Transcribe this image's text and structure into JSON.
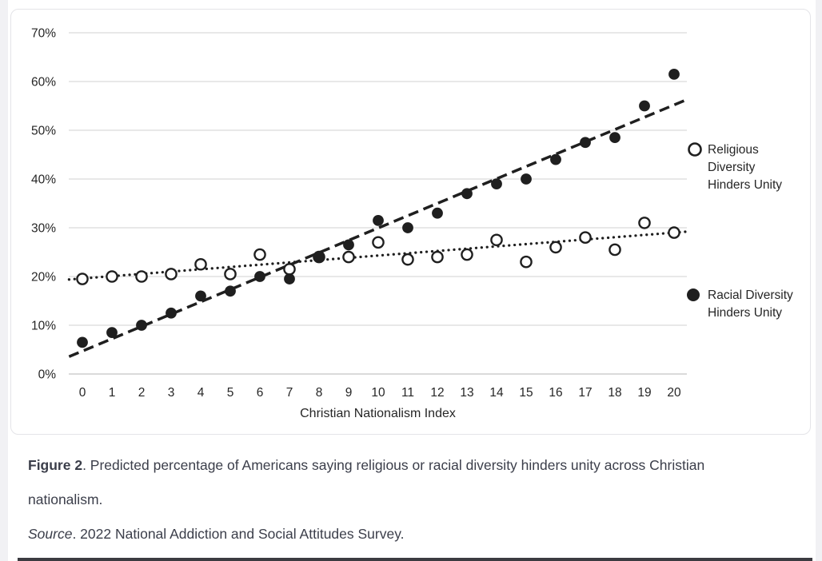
{
  "chart_data": {
    "type": "scatter",
    "title": "",
    "xlabel": "Christian Nationalism Index",
    "ylabel": "",
    "x": [
      0,
      1,
      2,
      3,
      4,
      5,
      6,
      7,
      8,
      9,
      10,
      11,
      12,
      13,
      14,
      15,
      16,
      17,
      18,
      19,
      20
    ],
    "xlim": [
      0,
      20
    ],
    "ylim": [
      0,
      70
    ],
    "y_ticks": [
      0,
      10,
      20,
      30,
      40,
      50,
      60,
      70
    ],
    "y_tick_suffix": "%",
    "grid": true,
    "legend_position": "right",
    "series": [
      {
        "name": "Religious Diversity Hinders Unity",
        "marker": "open-circle",
        "trend_style": "dotted",
        "values": [
          19.5,
          20,
          20,
          20.5,
          22.5,
          20.5,
          24.5,
          21.5,
          24,
          24,
          27,
          23.5,
          24,
          24.5,
          27.5,
          23,
          26,
          28,
          25.5,
          31,
          29
        ],
        "trend": {
          "intercept": 19.6,
          "slope": 0.47
        }
      },
      {
        "name": "Racial Diversity Hinders Unity",
        "marker": "filled-circle",
        "trend_style": "dashed",
        "values": [
          6.5,
          8.5,
          10,
          12.5,
          16,
          17,
          20,
          19.5,
          24,
          26.5,
          31.5,
          30,
          33,
          37,
          39,
          40,
          44,
          47.5,
          48.5,
          55,
          61.5
        ],
        "trend": {
          "intercept": 4.7,
          "slope": 2.525
        }
      }
    ],
    "legend": [
      {
        "marker": "open-circle",
        "label_lines": [
          "Religious",
          "Diversity",
          "Hinders Unity"
        ]
      },
      {
        "marker": "filled-circle",
        "label_lines": [
          "Racial Diversity",
          "Hinders Unity"
        ]
      }
    ]
  },
  "caption": {
    "figure_label": "Figure 2",
    "figure_text": ". Predicted percentage of Americans saying religious or racial diversity hinders unity across Christian nationalism.",
    "source_label": "Source",
    "source_text": ". 2022 National Addiction and Social Attitudes Survey."
  },
  "colors": {
    "marker": "#1f1f1f",
    "gridline": "#d9d9d9",
    "axis_line": "#c4c4c4",
    "chart_text": "#262626",
    "caption_text": "#3b3e4a",
    "bottom_rule": "#3b3b41"
  }
}
